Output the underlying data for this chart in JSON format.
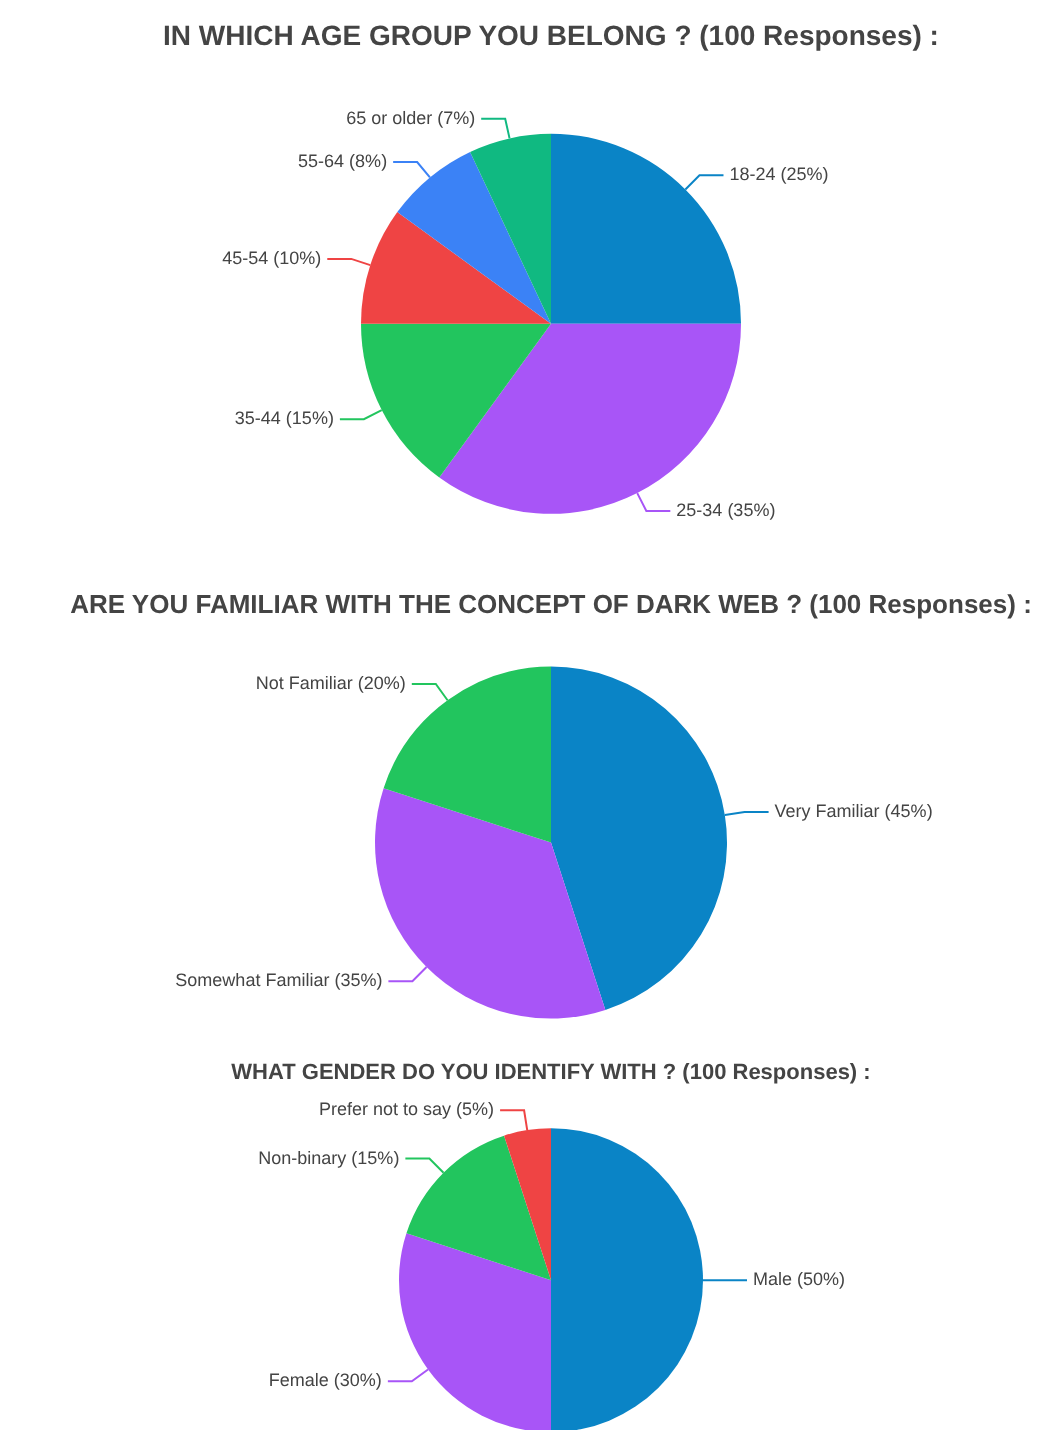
{
  "chart_data": [
    {
      "type": "pie",
      "title": "IN WHICH AGE GROUP YOU BELONG ? (100 Responses) :",
      "categories": [
        "18-24 (25%)",
        "25-34 (35%)",
        "35-44 (15%)",
        "45-54 (10%)",
        "55-64 (8%)",
        "65 or older (7%)"
      ],
      "values": [
        25,
        35,
        15,
        10,
        8,
        7
      ],
      "colors": [
        "#0a84c6",
        "#a855f7",
        "#22c55e",
        "#ef4444",
        "#3b82f6",
        "#10b981"
      ],
      "legend": false
    },
    {
      "type": "pie",
      "title": "ARE YOU FAMILIAR WITH THE CONCEPT OF DARK WEB ? (100 Responses) :",
      "categories": [
        "Very Familiar (45%)",
        "Somewhat Familiar (35%)",
        "Not Familiar (20%)"
      ],
      "values": [
        45,
        35,
        20
      ],
      "colors": [
        "#0a84c6",
        "#a855f7",
        "#22c55e"
      ],
      "legend": false
    },
    {
      "type": "pie",
      "title": "WHAT GENDER DO YOU IDENTIFY WITH ? (100 Responses) :",
      "categories": [
        "Male (50%)",
        "Female (30%)",
        "Non-binary (15%)",
        "Prefer not to say (5%)"
      ],
      "values": [
        50,
        30,
        15,
        5
      ],
      "colors": [
        "#0a84c6",
        "#a855f7",
        "#22c55e",
        "#ef4444"
      ],
      "legend": false
    }
  ]
}
